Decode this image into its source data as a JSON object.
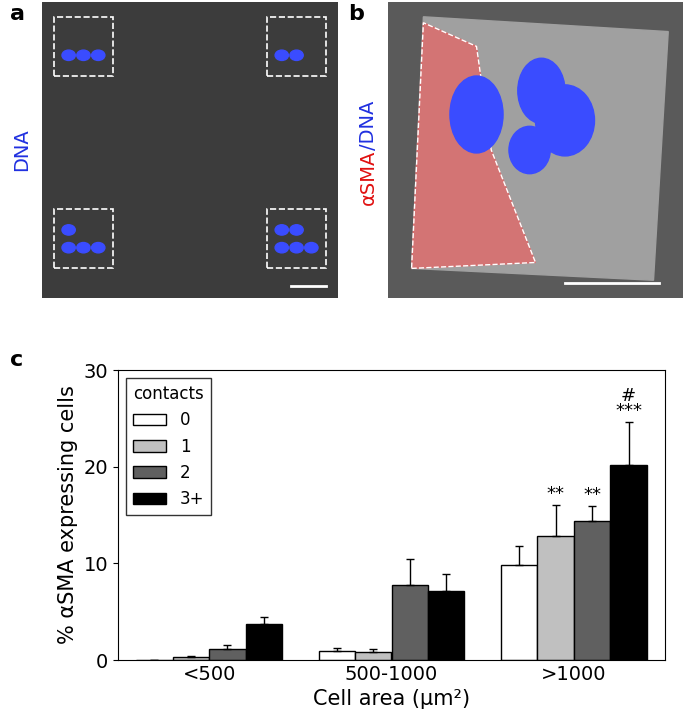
{
  "panels": [
    {
      "label": "a",
      "stain": [
        {
          "text": "DNA",
          "color": "#2030e0"
        }
      ]
    },
    {
      "label": "b",
      "stain": [
        {
          "text": "αSMA",
          "color": "#e01010"
        },
        {
          "text": "/DNA",
          "color": "#2030e0"
        }
      ]
    }
  ],
  "chart_data": {
    "type": "bar",
    "panel_label": "c",
    "categories": [
      "<500",
      "500-1000",
      ">1000"
    ],
    "series": [
      {
        "name": "0",
        "color": "#ffffff",
        "values": [
          0,
          0.9,
          9.8
        ],
        "errors": [
          0,
          0.3,
          2.0
        ]
      },
      {
        "name": "1",
        "color": "#c0c0c0",
        "values": [
          0.3,
          0.8,
          12.8
        ],
        "errors": [
          0.1,
          0.3,
          3.2
        ]
      },
      {
        "name": "2",
        "color": "#606060",
        "values": [
          1.1,
          7.8,
          14.4
        ],
        "errors": [
          0.5,
          2.6,
          1.5
        ]
      },
      {
        "name": "3+",
        "color": "#000000",
        "values": [
          3.7,
          7.1,
          20.2
        ],
        "errors": [
          0.7,
          1.8,
          4.4
        ]
      }
    ],
    "legend_title": "contacts",
    "legend": "upper left",
    "x_label": "Cell area (μm²)",
    "y_label": "% αSMA expressing cells",
    "ylim": [
      0,
      30
    ],
    "yticks": [
      0,
      10,
      20,
      30
    ],
    "annotations": [
      {
        "series": "1",
        "category": ">1000",
        "text": "**"
      },
      {
        "series": "2",
        "category": ">1000",
        "text": "**"
      },
      {
        "series": "3+",
        "category": ">1000",
        "text": "***"
      },
      {
        "series": "3+",
        "category": ">1000",
        "text": "#"
      }
    ]
  }
}
